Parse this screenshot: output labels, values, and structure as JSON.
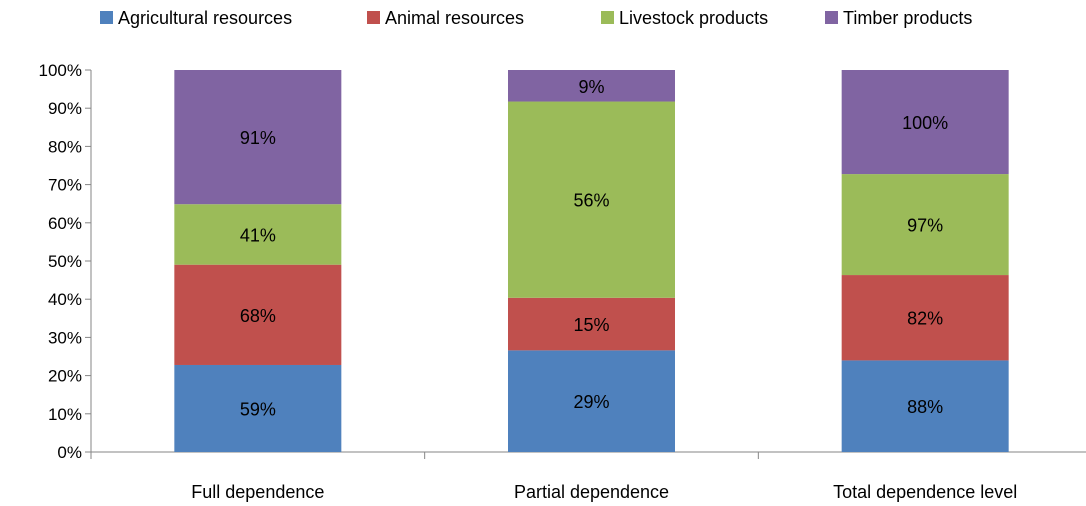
{
  "chart_data": {
    "type": "bar",
    "stacked": "percent",
    "categories": [
      "Full dependence",
      "Partial dependence",
      "Total dependence level"
    ],
    "series": [
      {
        "name": "Agricultural resources",
        "color": "#4F81BD",
        "values": [
          59,
          29,
          88
        ],
        "labels": [
          "59%",
          "29%",
          "88%"
        ]
      },
      {
        "name": "Animal resources",
        "color": "#C0504D",
        "values": [
          68,
          15,
          82
        ],
        "labels": [
          "68%",
          "15%",
          "82%"
        ]
      },
      {
        "name": "Livestock products",
        "color": "#9BBB59",
        "values": [
          41,
          56,
          97
        ],
        "labels": [
          "41%",
          "56%",
          "97%"
        ]
      },
      {
        "name": "Timber products",
        "color": "#8064A2",
        "values": [
          91,
          9,
          100
        ],
        "labels": [
          "91%",
          "9%",
          "100%"
        ]
      }
    ],
    "yticks": [
      "0%",
      "10%",
      "20%",
      "30%",
      "40%",
      "50%",
      "60%",
      "70%",
      "80%",
      "90%",
      "100%"
    ],
    "ylim": [
      0,
      100
    ],
    "legend_position": "top",
    "grid": false
  }
}
